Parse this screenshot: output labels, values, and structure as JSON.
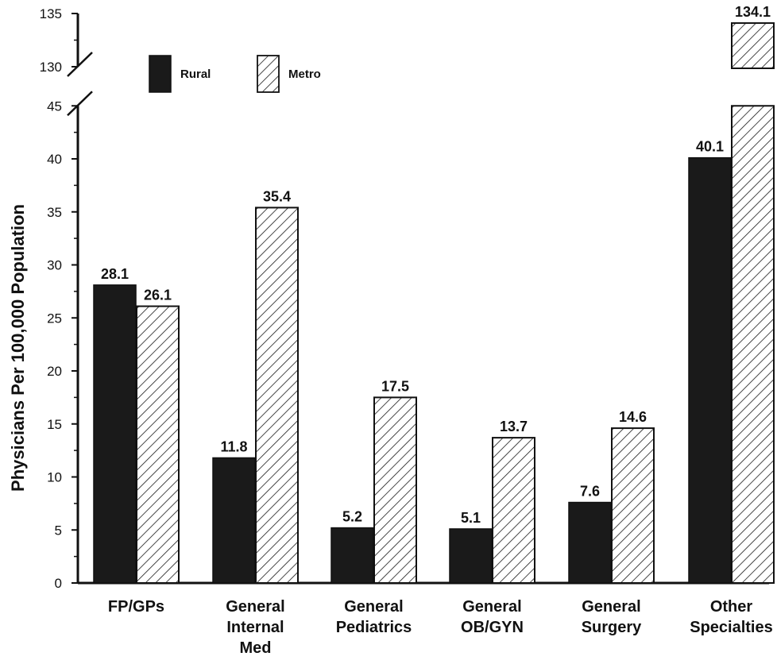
{
  "chart_data": {
    "type": "bar",
    "title": "",
    "xlabel": "",
    "ylabel": "Physicians Per 100,000 Population",
    "categories": [
      [
        "FP/GPs"
      ],
      [
        "General",
        "Internal",
        "Med"
      ],
      [
        "General",
        "Pediatrics"
      ],
      [
        "General",
        "OB/GYN"
      ],
      [
        "General",
        "Surgery"
      ],
      [
        "Other",
        "Specialties"
      ]
    ],
    "series": [
      {
        "name": "Rural",
        "values": [
          28.1,
          11.8,
          5.2,
          5.1,
          7.6,
          40.1
        ],
        "labels": [
          "28.1",
          "11.8",
          "5.2",
          "5.1",
          "7.6",
          "40.1"
        ]
      },
      {
        "name": "Metro",
        "values": [
          26.1,
          35.4,
          17.5,
          13.7,
          14.6,
          134.1
        ],
        "labels": [
          "26.1",
          "35.4",
          "17.5",
          "13.7",
          "14.6",
          "134.1"
        ]
      }
    ],
    "ylim": [
      0,
      45
    ],
    "ylim_upper_segment": [
      130,
      135
    ],
    "axis_break": true,
    "yticks": [
      0,
      5,
      10,
      15,
      20,
      25,
      30,
      35,
      40,
      45
    ],
    "ytick_labels": [
      "0",
      "5",
      "10",
      "15",
      "20",
      "25",
      "30",
      "35",
      "40",
      "45"
    ],
    "yticks_upper": [
      130,
      135
    ],
    "ytick_labels_upper": [
      "130",
      "135"
    ],
    "legend_position": "top-left",
    "grid": false,
    "series_fill": {
      "Rural": "solid black",
      "Metro": "diagonal hatch"
    },
    "colors": {
      "rural": "#1a1a1a",
      "metro_hatch": "#1a1a1a",
      "background": "#ffffff"
    }
  }
}
